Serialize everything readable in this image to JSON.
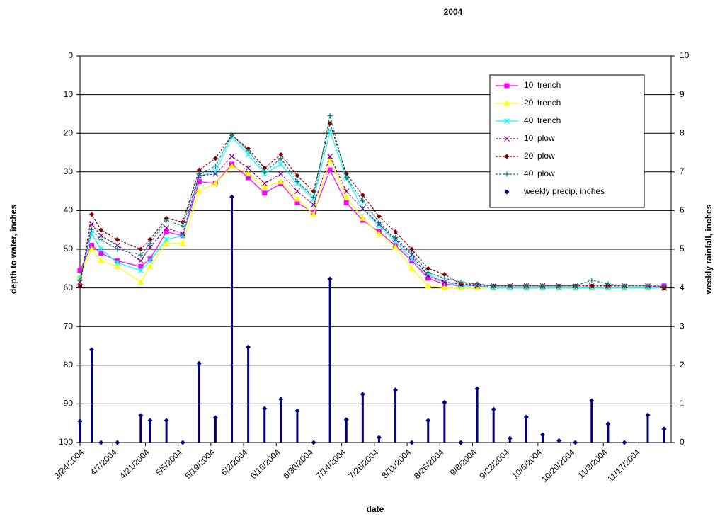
{
  "chart_data": {
    "type": "line",
    "title": "2004",
    "x_label": "date",
    "y_label": "depth to water, inches",
    "y2_label": "weekly rainfall, inches",
    "x": [
      "3/24/2004",
      "3/29/2004",
      "4/2/2004",
      "4/9/2004",
      "4/19/2004",
      "4/23/2004",
      "4/30/2004",
      "5/7/2004",
      "5/14/2004",
      "5/21/2004",
      "5/28/2004",
      "6/4/2004",
      "6/11/2004",
      "6/18/2004",
      "6/25/2004",
      "7/2/2004",
      "7/9/2004",
      "7/16/2004",
      "7/23/2004",
      "7/30/2004",
      "8/6/2004",
      "8/13/2004",
      "8/20/2004",
      "8/27/2004",
      "9/3/2004",
      "9/10/2004",
      "9/17/2004",
      "9/24/2004",
      "10/1/2004",
      "10/8/2004",
      "10/15/2004",
      "10/22/2004",
      "10/29/2004",
      "11/5/2004",
      "11/12/2004",
      "11/22/2004",
      "11/29/2004"
    ],
    "xlim": [
      "3/24/2004",
      "12/2/2004"
    ],
    "xticks": [
      "3/24/2004",
      "4/7/2004",
      "4/21/2004",
      "5/5/2004",
      "5/19/2004",
      "6/2/2004",
      "6/16/2004",
      "6/30/2004",
      "7/14/2004",
      "7/28/2004",
      "8/11/2004",
      "8/25/2004",
      "9/8/2004",
      "9/22/2004",
      "10/6/2004",
      "10/20/2004",
      "11/3/2004",
      "11/17/2004"
    ],
    "ylim": [
      0,
      100
    ],
    "y_inverted": true,
    "yticks": [
      0,
      10,
      20,
      30,
      40,
      50,
      60,
      70,
      80,
      90,
      100
    ],
    "y2lim": [
      0,
      10
    ],
    "y2ticks": [
      0,
      1,
      2,
      3,
      4,
      5,
      6,
      7,
      8,
      9,
      10
    ],
    "grid": true,
    "legend": "upper right",
    "series": [
      {
        "name": "10' trench",
        "color": "#ff00ff",
        "marker": "square",
        "dashed": false,
        "values": [
          55.5,
          49,
          51,
          53,
          54.5,
          52.5,
          45.5,
          46.5,
          32.5,
          33,
          28,
          31.5,
          35.5,
          33,
          38,
          40.5,
          29.5,
          38,
          42.5,
          45.5,
          49,
          53,
          57.5,
          59,
          59.5,
          59.5,
          60,
          60,
          60,
          60,
          60,
          60,
          60,
          60,
          60,
          60,
          59.5
        ]
      },
      {
        "name": "20' trench",
        "color": "#ffff00",
        "marker": "triangle",
        "dashed": false,
        "values": [
          57,
          50,
          53,
          54.5,
          58.5,
          54.5,
          48.5,
          48.5,
          35,
          33,
          28.5,
          30.5,
          34,
          32.5,
          37,
          41,
          27,
          36.5,
          42,
          46,
          49.5,
          55,
          59.5,
          60,
          60,
          60,
          60,
          60,
          60,
          60,
          60,
          60,
          60,
          60,
          60,
          60,
          60
        ]
      },
      {
        "name": "40' trench",
        "color": "#00ffff",
        "marker": "asterisk",
        "dashed": false,
        "values": [
          57.5,
          46,
          50,
          53.5,
          55.5,
          53,
          47.5,
          46.5,
          31,
          30,
          21,
          25.5,
          30.5,
          28,
          33,
          37,
          19.5,
          31.5,
          39.5,
          44,
          48,
          52.5,
          56.5,
          58.5,
          59.5,
          59.5,
          60,
          60,
          60,
          60,
          60,
          60,
          60,
          60,
          60,
          60,
          60
        ]
      },
      {
        "name": "10' plow",
        "color": "#800080",
        "marker": "cross",
        "dashed": true,
        "values": [
          58.5,
          43.5,
          46.5,
          49,
          53,
          49.5,
          44.5,
          46,
          31,
          30.5,
          26,
          29,
          33,
          30.5,
          35,
          38.5,
          26,
          35,
          39.5,
          43.5,
          47.5,
          51.5,
          57,
          58.5,
          59,
          59.5,
          59.5,
          59.5,
          59.5,
          59.5,
          59.5,
          59.5,
          59.5,
          59.5,
          59.5,
          59.5,
          60
        ]
      },
      {
        "name": "20' plow",
        "color": "#800000",
        "marker": "diamond",
        "dashed": true,
        "values": [
          59.5,
          41,
          45,
          47.5,
          50,
          47.5,
          42,
          43,
          29.5,
          26.5,
          20.5,
          24,
          29,
          25.5,
          31,
          35,
          17.5,
          30.5,
          36,
          41.5,
          45.5,
          50,
          55,
          56.5,
          59,
          59,
          59.5,
          59.5,
          59.5,
          59.5,
          59.5,
          59.5,
          59.5,
          59.5,
          59.5,
          59.5,
          60
        ]
      },
      {
        "name": "40' plow",
        "color": "#008080",
        "marker": "plus",
        "dashed": true,
        "values": [
          58,
          45,
          47.5,
          50,
          51.5,
          48.5,
          42.5,
          44,
          30.5,
          28.5,
          20.5,
          24.5,
          30,
          26.5,
          32.5,
          36.5,
          15.5,
          31.5,
          37.5,
          43,
          47,
          51,
          56,
          57.5,
          58.5,
          59,
          59.5,
          59.5,
          59.5,
          59.5,
          59.5,
          59.5,
          58,
          59,
          59.5,
          59.5,
          59.5
        ]
      },
      {
        "name": "weekly precip, inches",
        "color": "#000080",
        "marker": "diamond",
        "type": "stem",
        "axis": "y2",
        "values": [
          0.55,
          2.4,
          0,
          0,
          0.7,
          0.57,
          0.57,
          0,
          2.05,
          0.64,
          6.35,
          2.47,
          0.88,
          1.12,
          0.82,
          0,
          4.23,
          0.59,
          1.25,
          0.13,
          1.36,
          0,
          0.57,
          1.04,
          0,
          1.39,
          0.86,
          0.11,
          0.66,
          0.2,
          0.05,
          0,
          1.08,
          0.48,
          0,
          0.71,
          0.35
        ]
      }
    ]
  }
}
